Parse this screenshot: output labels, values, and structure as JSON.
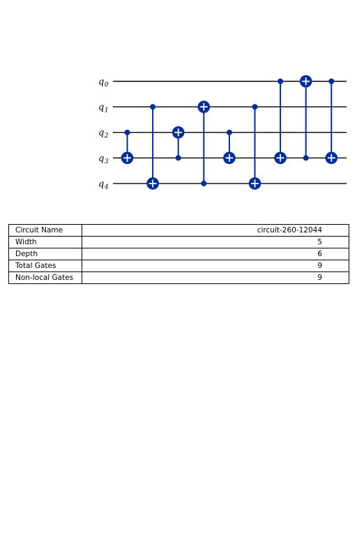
{
  "colors": {
    "gate": "#002d9c",
    "wire": "#000000",
    "background": "#ffffff"
  },
  "circuit": {
    "qubits": [
      "0",
      "1",
      "2",
      "3",
      "4"
    ],
    "qubit_prefix": "q",
    "gates": [
      {
        "type": "cx",
        "control": 2,
        "target": 3
      },
      {
        "type": "cx",
        "control": 1,
        "target": 4
      },
      {
        "type": "cx",
        "control": 3,
        "target": 2
      },
      {
        "type": "cx",
        "control": 4,
        "target": 1
      },
      {
        "type": "cx",
        "control": 2,
        "target": 3
      },
      {
        "type": "cx",
        "control": 1,
        "target": 4
      },
      {
        "type": "cx",
        "control": 0,
        "target": 3
      },
      {
        "type": "cx",
        "control": 3,
        "target": 0
      },
      {
        "type": "cx",
        "control": 0,
        "target": 3
      }
    ]
  },
  "table": {
    "rows": [
      {
        "key": "Circuit Name",
        "value": "circuit-260-12044"
      },
      {
        "key": "Width",
        "value": "5"
      },
      {
        "key": "Depth",
        "value": "6"
      },
      {
        "key": "Total Gates",
        "value": "9"
      },
      {
        "key": "Non-local Gates",
        "value": "9"
      }
    ]
  }
}
